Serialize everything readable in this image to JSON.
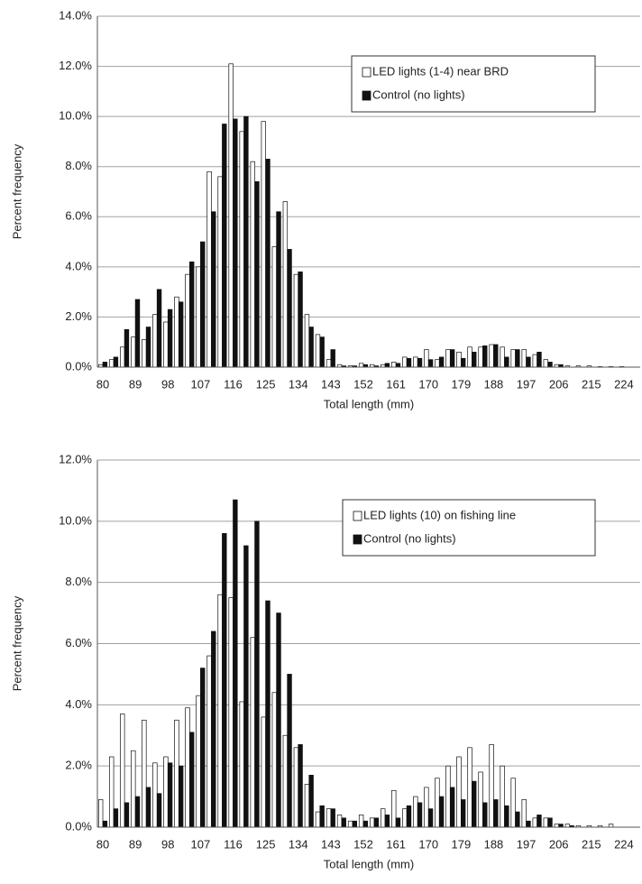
{
  "chart_data": [
    {
      "type": "bar",
      "ylabel": "Percent frequency",
      "xlabel": "Total length (mm)",
      "categories": [
        "80",
        null,
        null,
        "89",
        null,
        null,
        "98",
        null,
        null,
        "107",
        null,
        null,
        "116",
        null,
        null,
        "125",
        null,
        null,
        "134",
        null,
        null,
        "143",
        null,
        null,
        "152",
        null,
        null,
        "161",
        null,
        null,
        "170",
        null,
        null,
        "179",
        null,
        null,
        "188",
        null,
        null,
        "197",
        null,
        null,
        "206",
        null,
        null,
        "215",
        null,
        null,
        "224",
        null
      ],
      "series": [
        {
          "name": "LED lights (1-4) near BRD",
          "color": "#ffffff",
          "values": [
            0.1,
            0.3,
            0.8,
            1.2,
            1.1,
            2.1,
            1.8,
            2.8,
            3.7,
            4.0,
            7.8,
            7.6,
            12.1,
            9.4,
            8.2,
            9.8,
            4.8,
            6.6,
            3.7,
            2.1,
            1.3,
            0.3,
            0.1,
            0.05,
            0.15,
            0.1,
            0.1,
            0.2,
            0.4,
            0.4,
            0.7,
            0.3,
            0.7,
            0.6,
            0.8,
            0.8,
            0.9,
            0.8,
            0.7,
            0.7,
            0.5,
            0.3,
            0.1,
            0.05,
            0.05,
            0.05,
            0.02,
            0.02,
            0.02,
            0
          ]
        },
        {
          "name": "Control (no lights)",
          "color": "#111111",
          "values": [
            0.2,
            0.4,
            1.5,
            2.7,
            1.6,
            3.1,
            2.3,
            2.6,
            4.2,
            5.0,
            6.2,
            9.7,
            9.9,
            10.0,
            7.4,
            8.3,
            6.2,
            4.7,
            3.8,
            1.6,
            1.2,
            0.7,
            0.05,
            0.05,
            0.1,
            0.05,
            0.15,
            0.15,
            0.35,
            0.35,
            0.3,
            0.4,
            0.7,
            0.35,
            0.6,
            0.85,
            0.9,
            0.4,
            0.7,
            0.4,
            0.6,
            0.2,
            0.1,
            0,
            0,
            0,
            0,
            0,
            0,
            0
          ]
        }
      ],
      "ylim": [
        0,
        14
      ],
      "yticks": [
        {
          "value": 0,
          "label": "0.0%"
        },
        {
          "value": 2,
          "label": "2.0%"
        },
        {
          "value": 4,
          "label": "4.0%"
        },
        {
          "value": 6,
          "label": "6.0%"
        },
        {
          "value": 8,
          "label": "8.0%"
        },
        {
          "value": 10,
          "label": "10.0%"
        },
        {
          "value": 12,
          "label": "12.0%"
        },
        {
          "value": 14,
          "label": "14.0%"
        }
      ],
      "grid": true,
      "legend": "upper right"
    },
    {
      "type": "bar",
      "ylabel": "Percent frequency",
      "xlabel": "Total length (mm)",
      "categories": [
        "80",
        null,
        null,
        "89",
        null,
        null,
        "98",
        null,
        null,
        "107",
        null,
        null,
        "116",
        null,
        null,
        "125",
        null,
        null,
        "134",
        null,
        null,
        "143",
        null,
        null,
        "152",
        null,
        null,
        "161",
        null,
        null,
        "170",
        null,
        null,
        "179",
        null,
        null,
        "188",
        null,
        null,
        "197",
        null,
        null,
        "206",
        null,
        null,
        "215",
        null,
        null,
        "224",
        null
      ],
      "series": [
        {
          "name": "LED lights (10) on fishing line",
          "color": "#ffffff",
          "values": [
            0.9,
            2.3,
            3.7,
            2.5,
            3.5,
            2.1,
            2.3,
            3.5,
            3.9,
            4.3,
            5.6,
            7.6,
            7.5,
            4.1,
            6.2,
            3.6,
            4.4,
            3.0,
            2.6,
            1.4,
            0.5,
            0.6,
            0.4,
            0.2,
            0.4,
            0.3,
            0.6,
            1.2,
            0.6,
            1.0,
            1.3,
            1.6,
            2.0,
            2.3,
            2.6,
            1.8,
            2.7,
            2.0,
            1.6,
            0.9,
            0.3,
            0.3,
            0.1,
            0.1,
            0.05,
            0.05,
            0.05,
            0.1,
            0,
            0
          ]
        },
        {
          "name": "Control (no lights)",
          "color": "#111111",
          "values": [
            0.2,
            0.6,
            0.8,
            1.0,
            1.3,
            1.1,
            2.1,
            2.0,
            3.1,
            5.2,
            6.4,
            9.6,
            10.7,
            9.2,
            10.0,
            7.4,
            7.0,
            5.0,
            2.7,
            1.7,
            0.7,
            0.6,
            0.3,
            0.2,
            0.2,
            0.3,
            0.4,
            0.3,
            0.7,
            0.8,
            0.6,
            1.0,
            1.3,
            0.9,
            1.5,
            0.8,
            0.9,
            0.7,
            0.5,
            0.2,
            0.4,
            0.3,
            0.1,
            0.05,
            0,
            0,
            0,
            0,
            0,
            0
          ]
        }
      ],
      "ylim": [
        0,
        12
      ],
      "yticks": [
        {
          "value": 0,
          "label": "0.0%"
        },
        {
          "value": 2,
          "label": "2.0%"
        },
        {
          "value": 4,
          "label": "4.0%"
        },
        {
          "value": 6,
          "label": "6.0%"
        },
        {
          "value": 8,
          "label": "8.0%"
        },
        {
          "value": 10,
          "label": "10.0%"
        },
        {
          "value": 12,
          "label": "12.0%"
        }
      ],
      "grid": true,
      "legend": "upper right"
    }
  ]
}
